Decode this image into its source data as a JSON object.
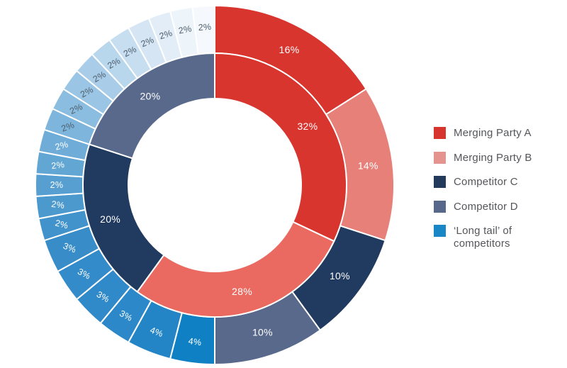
{
  "chart_data": {
    "type": "donut",
    "subtype": "two-ring nested donut (market shares)",
    "units": "percent",
    "start_angle_deg": 0,
    "direction": "clockwise",
    "grid": false,
    "legend_position": "right",
    "background_color": "#ffffff",
    "divider_color": "#ffffff",
    "legend": [
      {
        "label": "Merging Party A",
        "color": "#d8342e"
      },
      {
        "label": "Merging Party B",
        "color": "#e5938f"
      },
      {
        "label": "Competitor C",
        "color": "#233a5d"
      },
      {
        "label": "Competitor D",
        "color": "#57688a"
      },
      {
        "label": "‘Long tail’ of\ncompetitors",
        "color": "#1986c6"
      }
    ],
    "inner_ring": {
      "slices": [
        {
          "label": "Merging Party A",
          "value": 32,
          "display": "32%",
          "color": "#d8352f",
          "text_color": "#ffffff"
        },
        {
          "label": "Merging Party B",
          "value": 28,
          "display": "28%",
          "color": "#ea6a61",
          "text_color": "#ffffff"
        },
        {
          "label": "Competitor C",
          "value": 20,
          "display": "20%",
          "color": "#213a5f",
          "text_color": "#ffffff"
        },
        {
          "label": "Competitor D",
          "value": 20,
          "display": "20%",
          "color": "#58698c",
          "text_color": "#ffffff"
        }
      ]
    },
    "outer_ring": {
      "slices": [
        {
          "label": "Merging Party A",
          "value": 16,
          "display": "16%",
          "color": "#d8352f",
          "text_color": "#ffffff"
        },
        {
          "label": "Merging Party B",
          "value": 14,
          "display": "14%",
          "color": "#e8807a",
          "text_color": "#ffffff"
        },
        {
          "label": "Competitor C",
          "value": 10,
          "display": "10%",
          "color": "#213a5f",
          "text_color": "#ffffff"
        },
        {
          "label": "Competitor D",
          "value": 10,
          "display": "10%",
          "color": "#58698c",
          "text_color": "#ffffff"
        },
        {
          "group": "long_tail",
          "value": 4,
          "display": "4%",
          "color": "#0f80c3",
          "text_color": "#ffffff"
        },
        {
          "group": "long_tail",
          "value": 4,
          "display": "4%",
          "color": "#2385c6",
          "text_color": "#ffffff"
        },
        {
          "group": "long_tail",
          "value": 3,
          "display": "3%",
          "color": "#2c88c8",
          "text_color": "#ffffff"
        },
        {
          "group": "long_tail",
          "value": 3,
          "display": "3%",
          "color": "#3089c8",
          "text_color": "#ffffff"
        },
        {
          "group": "long_tail",
          "value": 3,
          "display": "3%",
          "color": "#348bc9",
          "text_color": "#ffffff"
        },
        {
          "group": "long_tail",
          "value": 3,
          "display": "3%",
          "color": "#388dc9",
          "text_color": "#ffffff"
        },
        {
          "group": "long_tail",
          "value": 2,
          "display": "2%",
          "color": "#4293cb",
          "text_color": "#ffffff"
        },
        {
          "group": "long_tail",
          "value": 2,
          "display": "2%",
          "color": "#4c99ce",
          "text_color": "#ffffff"
        },
        {
          "group": "long_tail",
          "value": 2,
          "display": "2%",
          "color": "#579fd1",
          "text_color": "#ffffff"
        },
        {
          "group": "long_tail",
          "value": 2,
          "display": "2%",
          "color": "#62a6d4",
          "text_color": "#ffffff"
        },
        {
          "group": "long_tail",
          "value": 2,
          "display": "2%",
          "color": "#6fadd8",
          "text_color": "#ffffff"
        },
        {
          "group": "long_tail",
          "value": 2,
          "display": "2%",
          "color": "#7db5dc",
          "text_color": "#4e5e6c"
        },
        {
          "group": "long_tail",
          "value": 2,
          "display": "2%",
          "color": "#8bbde0",
          "text_color": "#4e5e6c"
        },
        {
          "group": "long_tail",
          "value": 2,
          "display": "2%",
          "color": "#9ac5e4",
          "text_color": "#4e5e6c"
        },
        {
          "group": "long_tail",
          "value": 2,
          "display": "2%",
          "color": "#a9cde8",
          "text_color": "#4e5e6c"
        },
        {
          "group": "long_tail",
          "value": 2,
          "display": "2%",
          "color": "#b8d6ec",
          "text_color": "#4e5e6c"
        },
        {
          "group": "long_tail",
          "value": 2,
          "display": "2%",
          "color": "#c7def0",
          "text_color": "#4e5e6c"
        },
        {
          "group": "long_tail",
          "value": 2,
          "display": "2%",
          "color": "#d5e5f3",
          "text_color": "#4e5e6c"
        },
        {
          "group": "long_tail",
          "value": 2,
          "display": "2%",
          "color": "#e2edf7",
          "text_color": "#4e5e6c"
        },
        {
          "group": "long_tail",
          "value": 2,
          "display": "2%",
          "color": "#edf4fa",
          "text_color": "#4e5e6c"
        },
        {
          "group": "long_tail",
          "value": 2,
          "display": "2%",
          "color": "#f5f9fd",
          "text_color": "#4e5e6c"
        }
      ]
    }
  }
}
